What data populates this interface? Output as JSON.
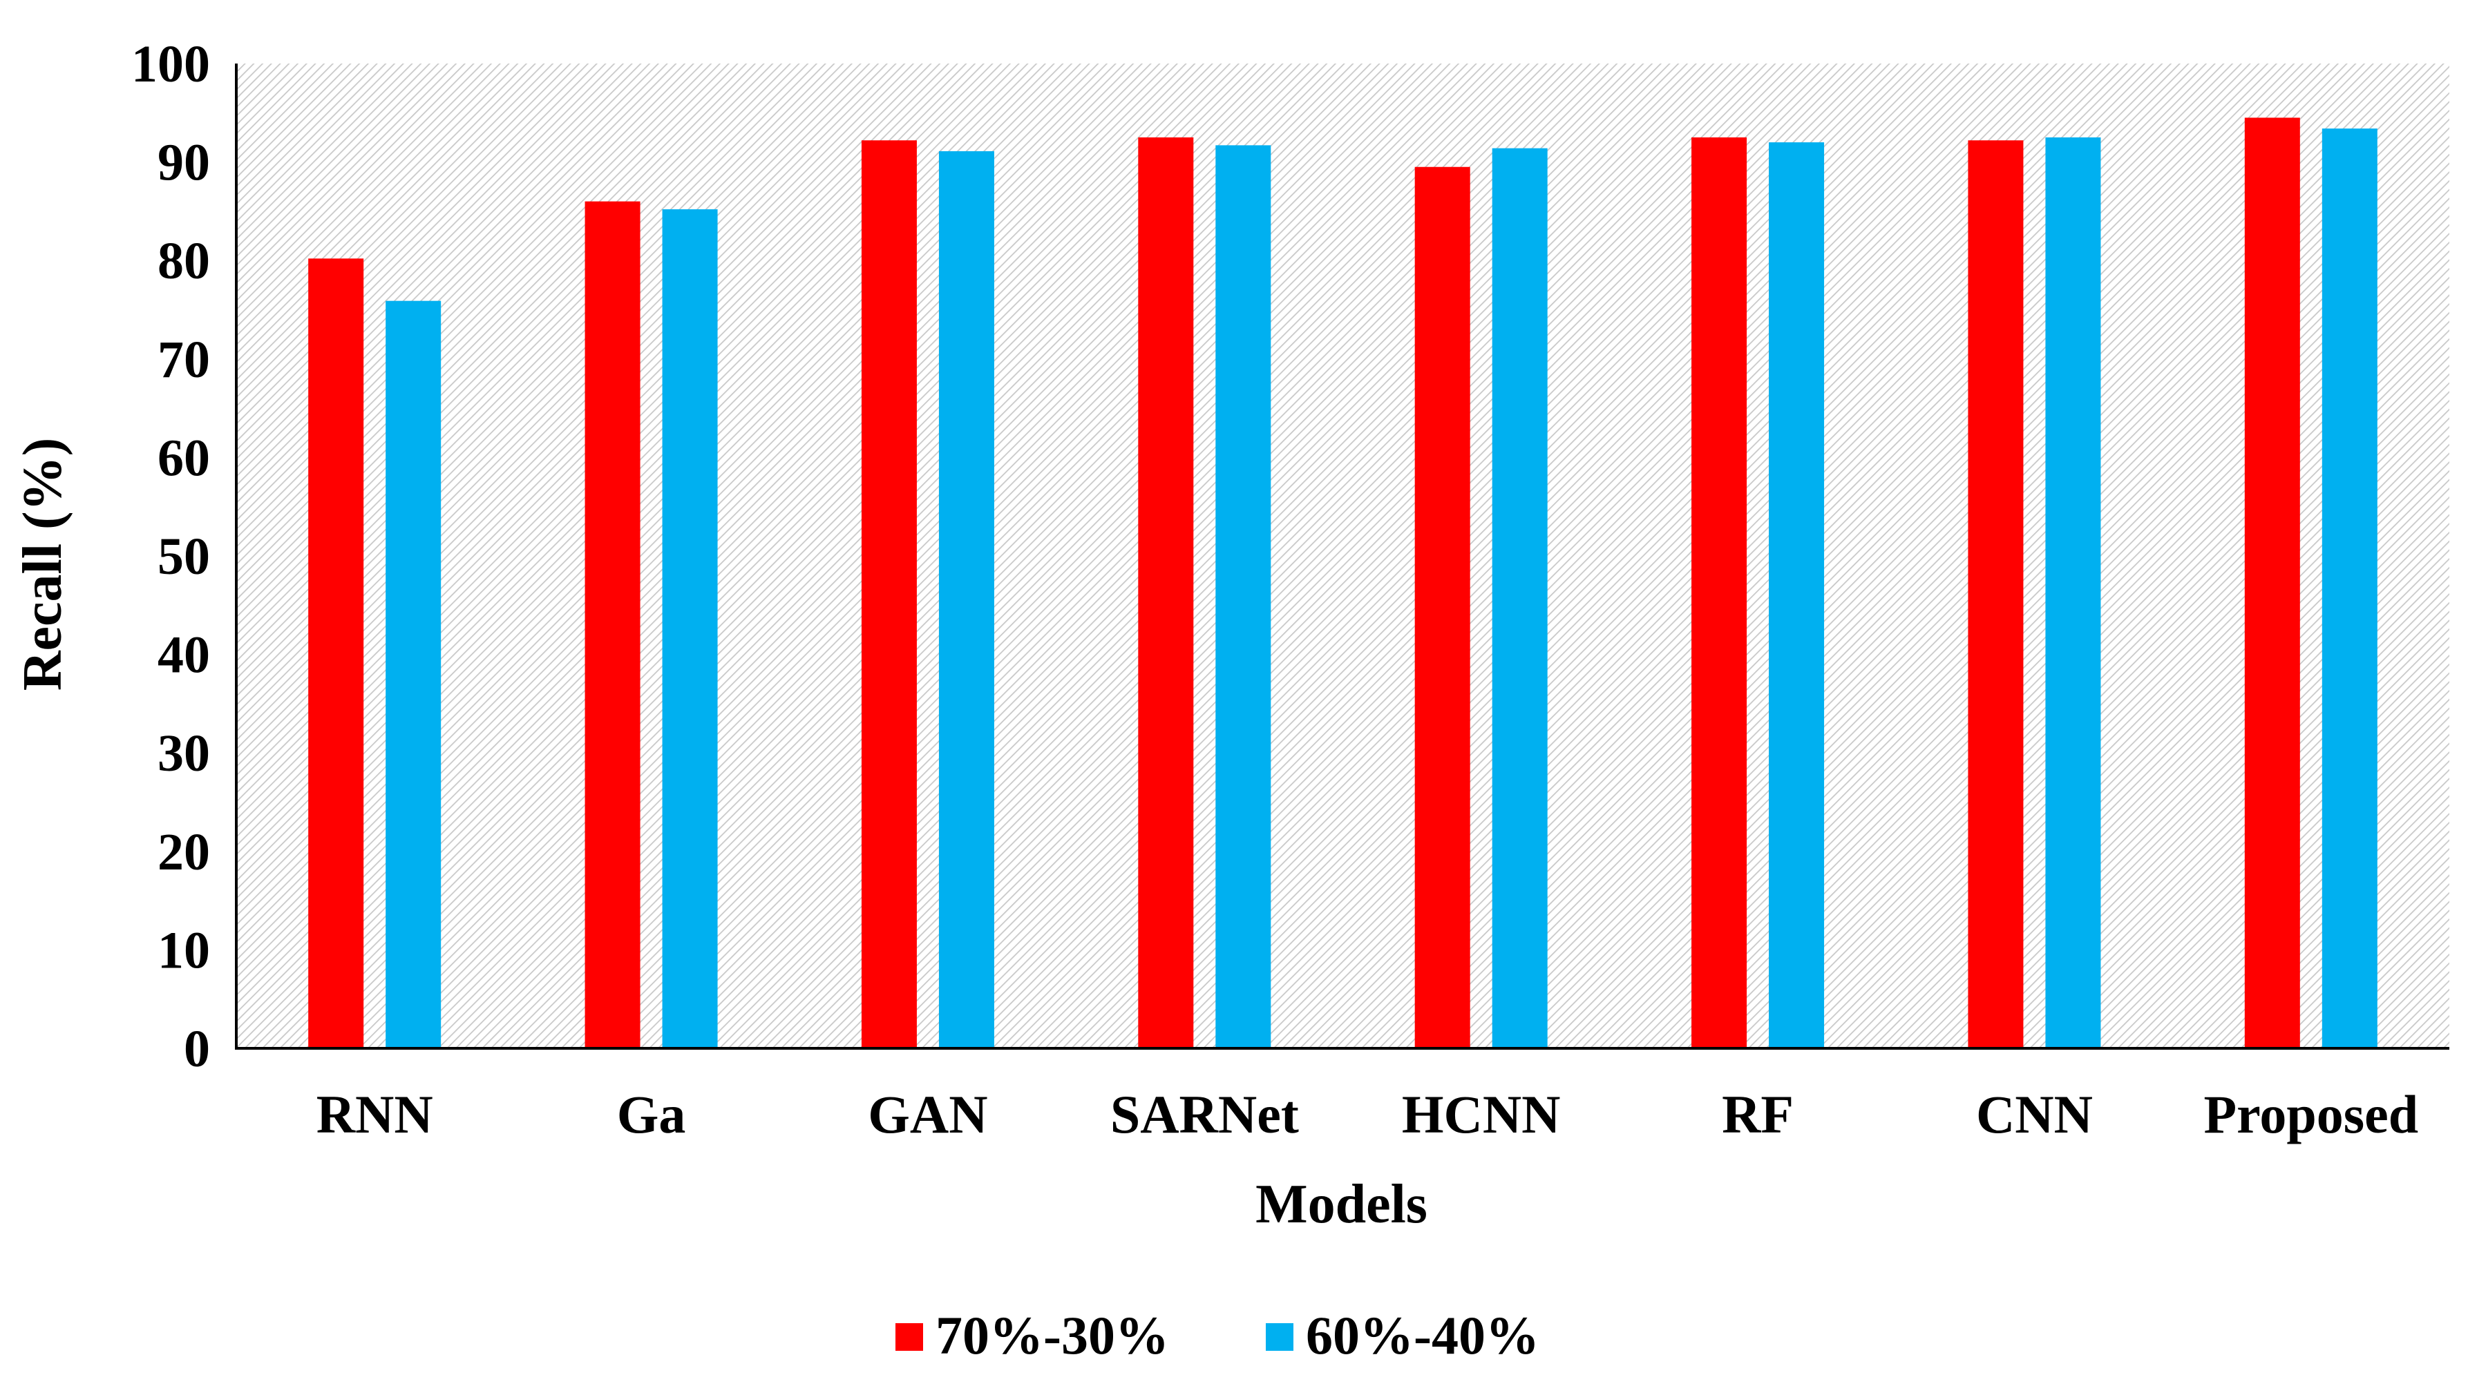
{
  "chart_data": {
    "type": "bar",
    "title": "",
    "xlabel": "Models",
    "ylabel": "Recall (%)",
    "ylim": [
      0,
      100
    ],
    "yticks": [
      0,
      10,
      20,
      30,
      40,
      50,
      60,
      70,
      80,
      90,
      100
    ],
    "grid": false,
    "background": "diagonal-hatch",
    "legend_position": "bottom-center",
    "categories": [
      "RNN",
      "Ga",
      "GAN",
      "SARNet",
      "HCNN",
      "RF",
      "CNN",
      "Proposed"
    ],
    "series": [
      {
        "name": "70%-30%",
        "color": "#ff0000",
        "values": [
          80.2,
          86.0,
          92.2,
          92.5,
          89.5,
          92.5,
          92.2,
          94.5
        ]
      },
      {
        "name": "60%-40%",
        "color": "#00b0f0",
        "values": [
          75.9,
          85.2,
          91.1,
          91.7,
          91.4,
          92.0,
          92.5,
          93.4
        ]
      }
    ]
  }
}
